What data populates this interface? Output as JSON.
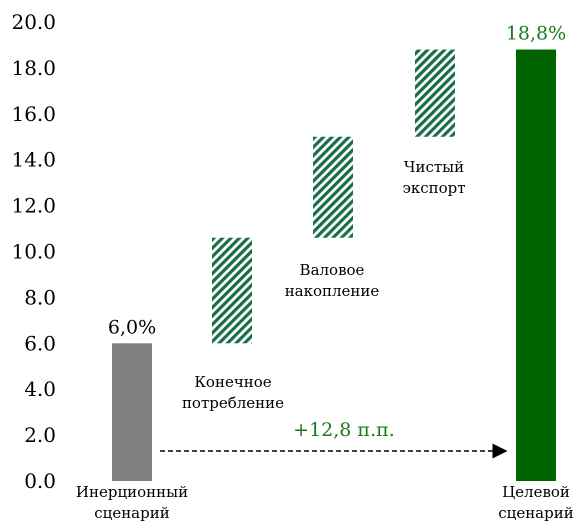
{
  "chart_data": {
    "type": "bar",
    "subtype": "waterfall",
    "ylim": [
      0,
      20
    ],
    "yticks": [
      "0.0",
      "2.0",
      "4.0",
      "6.0",
      "8.0",
      "10.0",
      "12.0",
      "14.0",
      "16.0",
      "18.0",
      "20.0"
    ],
    "grid": false,
    "bars": [
      {
        "key": "inertial",
        "label_lines": [
          "Инерционный",
          "сценарий"
        ],
        "base": 0,
        "value": 6.0,
        "kind": "total",
        "color": "#808080",
        "value_label": "6,0%",
        "value_label_color": "#000000"
      },
      {
        "key": "consumption",
        "label_lines": [
          "Конечное",
          "потребление"
        ],
        "base": 6.0,
        "value": 4.6,
        "kind": "step",
        "color": "#1b6e4a"
      },
      {
        "key": "accumulation",
        "label_lines": [
          "Валовое",
          "накопление"
        ],
        "base": 10.6,
        "value": 4.4,
        "kind": "step",
        "color": "#1b6e4a"
      },
      {
        "key": "export",
        "label_lines": [
          "Чистый",
          "экспорт"
        ],
        "base": 15.0,
        "value": 3.8,
        "kind": "step",
        "color": "#1b6e4a"
      },
      {
        "key": "target",
        "label_lines": [
          "Целевой",
          "сценарий"
        ],
        "base": 0,
        "value": 18.8,
        "kind": "total",
        "color": "#006400",
        "value_label": "18,8%",
        "value_label_color": "#1a7a1a"
      }
    ],
    "annotation": {
      "text": "+12,8 п.п.",
      "color": "#1a7a1a",
      "from": "inertial",
      "to": "target",
      "style": "dashed-arrow"
    }
  }
}
